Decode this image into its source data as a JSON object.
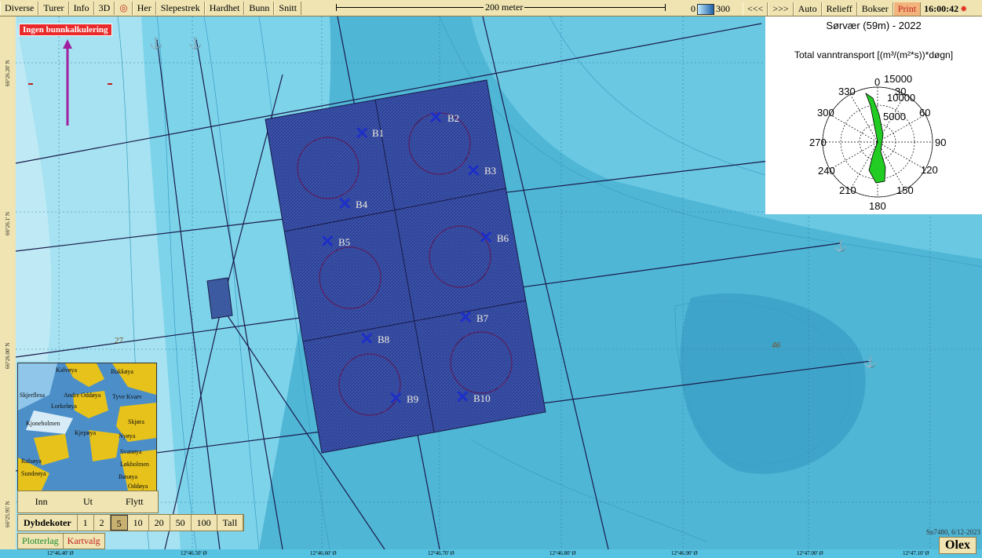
{
  "toolbar": {
    "menu": [
      "Diverse",
      "Turer",
      "Info",
      "3D",
      "Her",
      "Slepestrek",
      "Hardhet",
      "Bunn",
      "Snitt"
    ],
    "scale_label": "200 meter",
    "depth_min": "0",
    "depth_max": "300",
    "nav": [
      "<<<",
      ">>>",
      "Auto",
      "Relieff",
      "Bokser"
    ],
    "print_label": "Print",
    "clock": "16:00:42"
  },
  "map": {
    "warning": "Ingen bunnkalkulering",
    "stations": [
      "B1",
      "B2",
      "B3",
      "B4",
      "B5",
      "B6",
      "B7",
      "B8",
      "B9",
      "B10"
    ],
    "depth_labels": [
      "27",
      "46"
    ],
    "left_coords": [
      "66°26.20' N",
      "66°26.1' N",
      "66°26.00' N",
      "66°25.95' N"
    ],
    "bottom_coords": [
      "12°46.40' Ø",
      "12°46.50' Ø",
      "12°46.60' Ø",
      "12°46.70' Ø",
      "12°46.80' Ø",
      "12°46.90' Ø",
      "12°47.00' Ø",
      "12°47.10' Ø"
    ]
  },
  "rose": {
    "title": "Sørvær (59m) - 2022",
    "subtitle": "Total vanntransport [(m³/(m²*s))*døgn]",
    "radial_labels": [
      "0",
      "15000",
      "10000",
      "5000"
    ],
    "angle_labels": [
      "30",
      "60",
      "90",
      "120",
      "150",
      "180",
      "210",
      "240",
      "270",
      "300",
      "330"
    ]
  },
  "inset": {
    "places": [
      "Kalvøya",
      "Bukkøya",
      "Skjerflesa",
      "Andre Oddøya",
      "Tyve Kvarv",
      "Lorkeløya",
      "Kjoneholmen",
      "Kjepøya",
      "Skjøra",
      "Nyøya",
      "Svanøya",
      "Ralsøya",
      "Løkholmen",
      "Sundeøya",
      "Bøsøya",
      "Oddøya"
    ],
    "buttons": [
      "Inn",
      "Ut",
      "Flytt"
    ]
  },
  "depth_contours": {
    "title": "Dybdekoter",
    "options": [
      "1",
      "2",
      "5",
      "10",
      "20",
      "50",
      "100",
      "Tall"
    ],
    "selected": "5"
  },
  "layers": {
    "plotter": "Plotterlag",
    "map": "Kartvalg"
  },
  "footer": {
    "stamp": "Sn7480, 6/12-2023",
    "brand": "Olex"
  },
  "colors": {
    "water": "#57c3e2",
    "grid_area": "#2b3f8f",
    "station_marker": "#1e2fc8",
    "rose_fill": "#22cc22",
    "toolbar": "#efe4b2"
  }
}
